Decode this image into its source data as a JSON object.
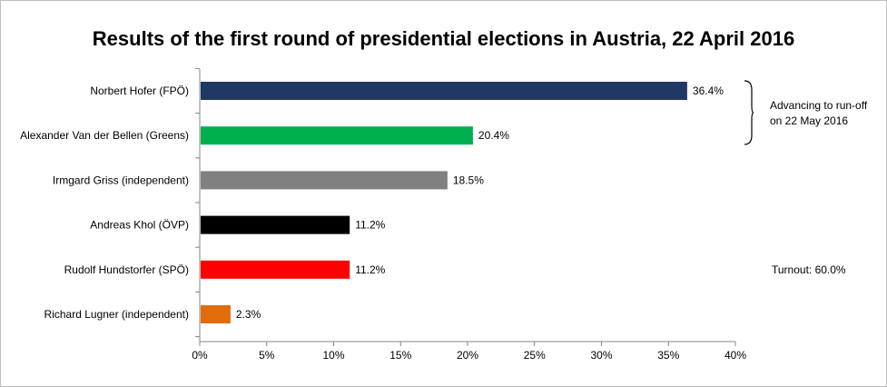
{
  "chart_data": {
    "type": "bar",
    "orientation": "horizontal",
    "title": "Results of the first round of presidential elections in Austria, 22 April 2016",
    "categories": [
      "Norbert Hofer (FPÖ)",
      "Alexander Van der Bellen (Greens)",
      "Irmgard Griss (independent)",
      "Andreas Khol (ÖVP)",
      "Rudolf Hundstorfer (SPÖ)",
      "Richard Lugner (independent)"
    ],
    "values": [
      36.4,
      20.4,
      18.5,
      11.2,
      11.2,
      2.3
    ],
    "data_labels": [
      "36.4%",
      "20.4%",
      "18.5%",
      "11.2%",
      "11.2%",
      "2.3%"
    ],
    "colors": [
      "#1f3864",
      "#00b050",
      "#808080",
      "#000000",
      "#ff0000",
      "#e36c0a"
    ],
    "xlim": [
      0,
      40
    ],
    "x_ticks": [
      0,
      5,
      10,
      15,
      20,
      25,
      30,
      35,
      40
    ],
    "x_tick_labels": [
      "0%",
      "5%",
      "10%",
      "15%",
      "20%",
      "25%",
      "30%",
      "35%",
      "40%"
    ],
    "xlabel": "",
    "ylabel": "",
    "grid": false,
    "legend": "none",
    "annotations": {
      "advancing": "Advancing to run-off on 22 May 2016",
      "turnout": "Turnout: 60.0%"
    }
  }
}
